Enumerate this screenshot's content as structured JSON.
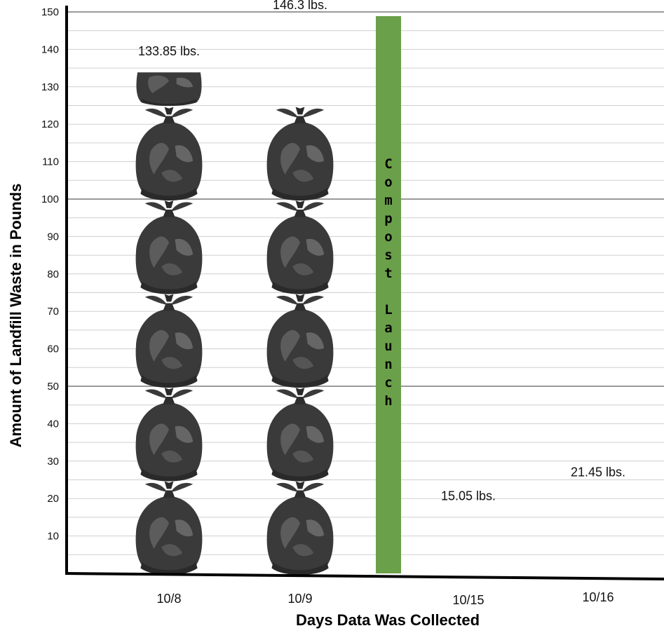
{
  "chart_data": {
    "type": "bar",
    "title": "",
    "xlabel": "Days Data Was Collected",
    "ylabel": "Amount of Landfill Waste in Pounds",
    "categories": [
      "10/8",
      "10/9",
      "10/15",
      "10/16"
    ],
    "values": [
      133.85,
      146.3,
      15.05,
      21.45
    ],
    "data_labels": [
      "133.85 lbs.",
      "146.3 lbs.",
      "15.05 lbs.",
      "21.45 lbs."
    ],
    "ylim": [
      0,
      150
    ],
    "yticks": [
      10,
      20,
      30,
      40,
      50,
      60,
      70,
      80,
      90,
      100,
      110,
      120,
      130,
      140,
      150
    ],
    "unit_per_icon": 25,
    "icon": "trash-bag-icon",
    "grid": true,
    "marker": {
      "position_after": "10/9",
      "text": "Compost Launch",
      "color": "#6ba04a"
    }
  },
  "colors": {
    "bag": "#3a3a3a",
    "bag_highlight": "#6a6a6a",
    "grid": "#cfcfcf",
    "grid_major": "#9a9a9a",
    "axis": "#000000"
  }
}
